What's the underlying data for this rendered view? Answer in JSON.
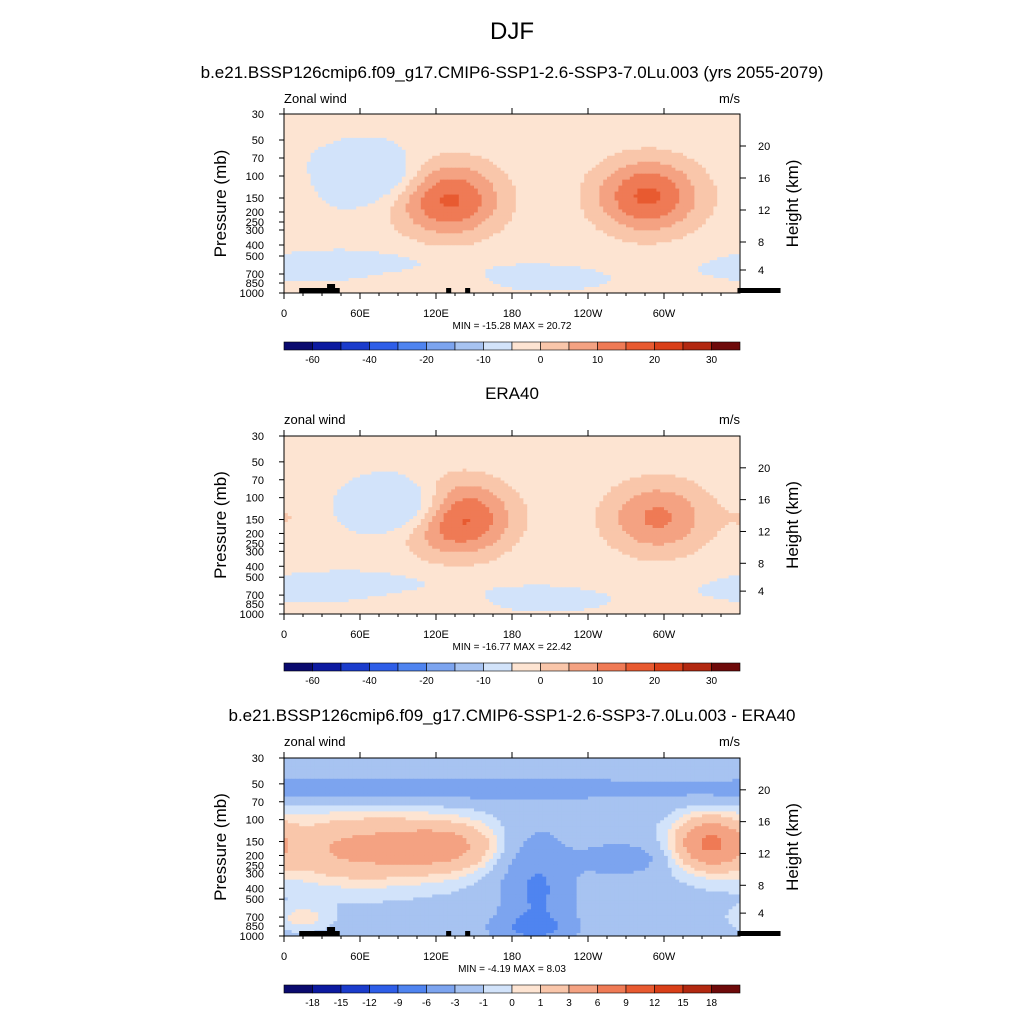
{
  "title": "DJF",
  "chart_data": [
    {
      "type": "heatmap",
      "title": "b.e21.BSSP126cmip6.f09_g17.CMIP6-SSP1-2.6-SSP3-7.0Lu.003 (yrs 2055-2079)",
      "left_label": "Zonal wind",
      "right_label": "m/s",
      "xlabel": "",
      "ylabel": "Pressure (mb)",
      "y2label": "Height (km)",
      "x_ticks": [
        "0",
        "60E",
        "120E",
        "180",
        "120W",
        "60W"
      ],
      "y_ticks": [
        "30",
        "50",
        "70",
        "100",
        "150",
        "200",
        "250",
        "300",
        "400",
        "500",
        "700",
        "850",
        "1000"
      ],
      "y2_ticks": [
        "20",
        "16",
        "12",
        "8",
        "4"
      ],
      "stats": "MIN = -15.28  MAX =  20.72",
      "min": -15.28,
      "max": 20.72,
      "colorbar_labels": [
        "-60",
        "-40",
        "-20",
        "-10",
        "0",
        "10",
        "20",
        "30"
      ],
      "jets": [
        {
          "lon": 130,
          "p": 160,
          "peak": 20
        },
        {
          "lon": 287,
          "p": 150,
          "peak": 20
        },
        {
          "lon": 70,
          "p": 100,
          "peak": -12
        }
      ]
    },
    {
      "type": "heatmap",
      "title": "ERA40",
      "left_label": "zonal wind",
      "right_label": "m/s",
      "xlabel": "",
      "ylabel": "Pressure (mb)",
      "y2label": "Height (km)",
      "x_ticks": [
        "0",
        "60E",
        "120E",
        "180",
        "120W",
        "60W"
      ],
      "y_ticks": [
        "30",
        "50",
        "70",
        "100",
        "150",
        "200",
        "250",
        "300",
        "400",
        "500",
        "700",
        "850",
        "1000"
      ],
      "y2_ticks": [
        "20",
        "16",
        "12",
        "8",
        "4"
      ],
      "stats": "MIN = -16.77  MAX =  22.42",
      "min": -16.77,
      "max": 22.42,
      "colorbar_labels": [
        "-60",
        "-40",
        "-20",
        "-10",
        "0",
        "10",
        "20",
        "30"
      ],
      "jets": [
        {
          "lon": 137,
          "p": 150,
          "peak": 22
        },
        {
          "lon": 295,
          "p": 150,
          "peak": 15
        },
        {
          "lon": 97,
          "p": 120,
          "peak": -15
        }
      ]
    },
    {
      "type": "heatmap",
      "title": "b.e21.BSSP126cmip6.f09_g17.CMIP6-SSP1-2.6-SSP3-7.0Lu.003 - ERA40",
      "left_label": "zonal wind",
      "right_label": "m/s",
      "xlabel": "",
      "ylabel": "Pressure (mb)",
      "y2label": "Height (km)",
      "x_ticks": [
        "0",
        "60E",
        "120E",
        "180",
        "120W",
        "60W"
      ],
      "y_ticks": [
        "30",
        "50",
        "70",
        "100",
        "150",
        "200",
        "250",
        "300",
        "400",
        "500",
        "700",
        "850",
        "1000"
      ],
      "y2_ticks": [
        "20",
        "16",
        "12",
        "8",
        "4"
      ],
      "stats": "MIN =  -4.19  MAX =   8.03",
      "min": -4.19,
      "max": 8.03,
      "colorbar_labels": [
        "-18",
        "-15",
        "-12",
        "-9",
        "-6",
        "-3",
        "-1",
        "0",
        "1",
        "3",
        "6",
        "9",
        "12",
        "15",
        "18"
      ]
    }
  ],
  "colors": {
    "palette": [
      "#0a0a6e",
      "#0c1aa0",
      "#1b3ccc",
      "#2e5ee8",
      "#4f84f0",
      "#7ca4ef",
      "#a7c3f1",
      "#d2e3fa",
      "#fde4d2",
      "#f9c6aa",
      "#f4a282",
      "#ef7a55",
      "#e85a30",
      "#d93f18",
      "#b22810",
      "#6e0a0a"
    ],
    "topography": "#000000"
  }
}
